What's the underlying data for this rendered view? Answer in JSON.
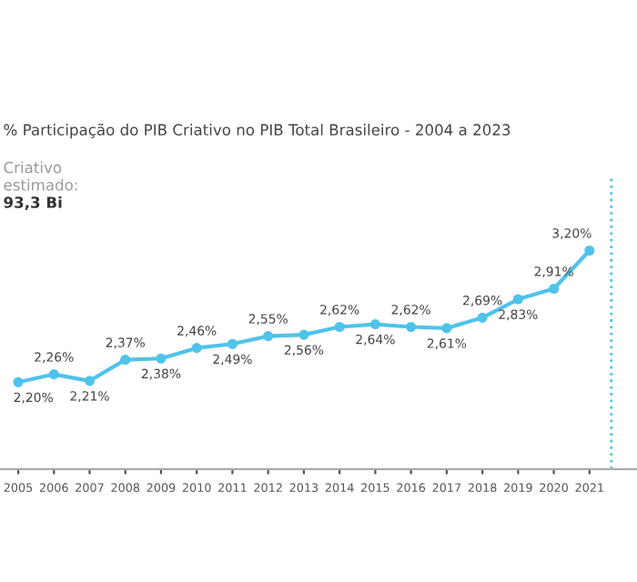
{
  "chart_data": {
    "type": "line",
    "title": "% Participação do PIB Criativo no PIB Total Brasileiro - 2004 a 2023",
    "annotations": [
      "Criativo",
      "estimado:",
      "93,3 Bi"
    ],
    "x": [
      2005,
      2006,
      2007,
      2008,
      2009,
      2010,
      2011,
      2012,
      2013,
      2014,
      2015,
      2016,
      2017,
      2018,
      2019,
      2020,
      2021
    ],
    "series": [
      {
        "color": "#4fc3ea",
        "values": [
          2.2,
          2.26,
          2.21,
          2.37,
          2.38,
          2.46,
          2.49,
          2.55,
          2.56,
          2.62,
          2.64,
          2.62,
          2.61,
          2.69,
          2.83,
          2.91,
          3.2
        ],
        "value_labels": [
          "2,20%",
          "2,26%",
          "2,21%",
          "2,37%",
          "2,38%",
          "2,46%",
          "2,49%",
          "2,55%",
          "2,56%",
          "2,62%",
          "2,64%",
          "2,62%",
          "2,61%",
          "2,69%",
          "2,83%",
          "2,91%",
          "3,20%"
        ]
      }
    ],
    "xlim": [
      2004.49,
      2022.33
    ],
    "xticks": [
      2005,
      2006,
      2007,
      2008,
      2009,
      2010,
      2011,
      2012,
      2013,
      2014,
      2015,
      2016,
      2017,
      2018,
      2019,
      2020,
      2021
    ],
    "ylim": [
      1.54,
      3.75
    ],
    "tick_labels": "x",
    "marker": "circle",
    "line_style": "solid",
    "grid": false,
    "legend": false,
    "ref_lines": [
      {
        "axis": "x",
        "value": 2021.61,
        "color": "#4fc3ea",
        "line_style": "dotted"
      }
    ]
  }
}
